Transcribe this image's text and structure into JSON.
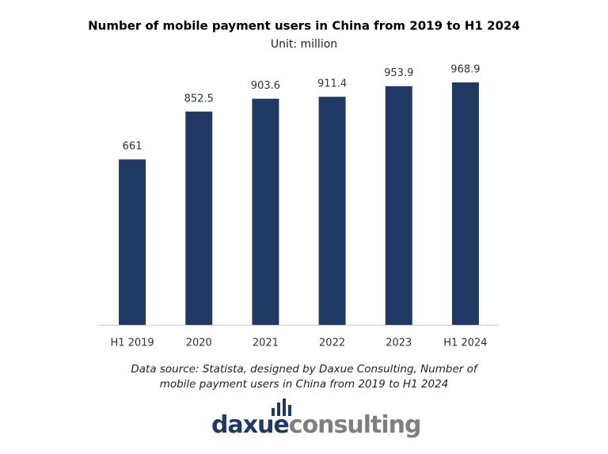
{
  "chart_data": {
    "type": "bar",
    "title": "Number of mobile payment users in China from 2019 to H1 2024",
    "subtitle": "Unit: million",
    "categories": [
      "H1 2019",
      "2020",
      "2021",
      "2022",
      "2023",
      "H1 2024"
    ],
    "values": [
      661,
      852.5,
      903.6,
      911.4,
      953.9,
      968.9
    ],
    "color": "#203864"
  },
  "source": [
    "Data source: Statista, designed by Daxue Consulting, Number of",
    "mobile payment users in China from 2019 to H1 2024"
  ],
  "logo": {
    "part1": "daxue",
    "part2": "consulting"
  }
}
